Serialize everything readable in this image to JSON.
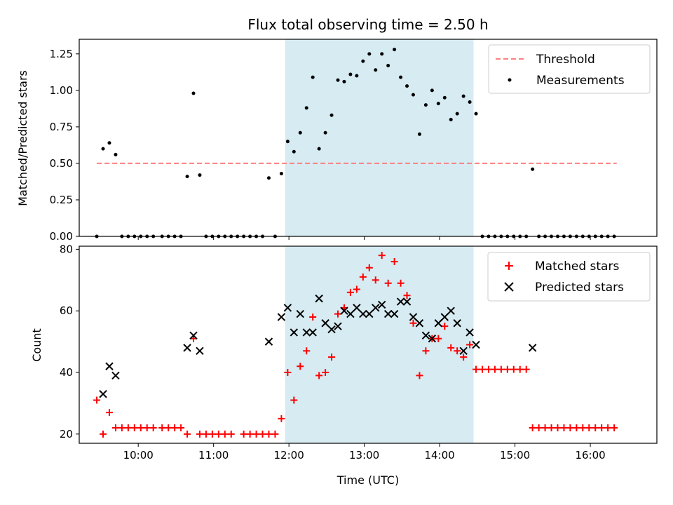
{
  "chart_data": [
    {
      "type": "scatter",
      "title": "Flux total observing time = 2.50 h",
      "xlabel": "",
      "ylabel": "Matched/Predicted stars",
      "xlim": [
        "09:13",
        "16:53"
      ],
      "ylim": [
        0,
        1.35
      ],
      "x_ticks": [
        "10:00",
        "11:00",
        "12:00",
        "13:00",
        "14:00",
        "15:00",
        "16:00"
      ],
      "y_ticks": [
        "0.00",
        "0.25",
        "0.50",
        "0.75",
        "1.00",
        "1.25"
      ],
      "shaded_region": {
        "start": "11:57",
        "end": "14:27",
        "color": "#add8e6"
      },
      "legend": {
        "placement": "upper right",
        "entries": [
          "Threshold",
          "Measurements"
        ]
      },
      "series": [
        {
          "name": "Threshold",
          "kind": "dashed-line",
          "color": "#ff7f7f",
          "x": [
            "09:27",
            "16:21"
          ],
          "y": [
            0.5,
            0.5
          ]
        },
        {
          "name": "Measurements",
          "kind": "points",
          "color": "#000000",
          "points": [
            [
              "09:27",
              0.0
            ],
            [
              "09:32",
              0.6
            ],
            [
              "09:37",
              0.64
            ],
            [
              "09:42",
              0.56
            ],
            [
              "09:47",
              0.0
            ],
            [
              "09:52",
              0.0
            ],
            [
              "09:57",
              0.0
            ],
            [
              "10:02",
              0.0
            ],
            [
              "10:07",
              0.0
            ],
            [
              "10:12",
              0.0
            ],
            [
              "10:19",
              0.0
            ],
            [
              "10:24",
              0.0
            ],
            [
              "10:29",
              0.0
            ],
            [
              "10:34",
              0.0
            ],
            [
              "10:39",
              0.41
            ],
            [
              "10:44",
              0.98
            ],
            [
              "10:49",
              0.42
            ],
            [
              "10:54",
              0.0
            ],
            [
              "10:59",
              0.0
            ],
            [
              "11:04",
              0.0
            ],
            [
              "11:09",
              0.0
            ],
            [
              "11:14",
              0.0
            ],
            [
              "11:19",
              0.0
            ],
            [
              "11:24",
              0.0
            ],
            [
              "11:29",
              0.0
            ],
            [
              "11:34",
              0.0
            ],
            [
              "11:39",
              0.0
            ],
            [
              "11:44",
              0.4
            ],
            [
              "11:49",
              0.0
            ],
            [
              "11:54",
              0.43
            ],
            [
              "11:59",
              0.65
            ],
            [
              "12:04",
              0.58
            ],
            [
              "12:09",
              0.71
            ],
            [
              "12:14",
              0.88
            ],
            [
              "12:19",
              1.09
            ],
            [
              "12:24",
              0.6
            ],
            [
              "12:29",
              0.71
            ],
            [
              "12:34",
              0.83
            ],
            [
              "12:39",
              1.07
            ],
            [
              "12:44",
              1.06
            ],
            [
              "12:49",
              1.11
            ],
            [
              "12:54",
              1.1
            ],
            [
              "12:59",
              1.2
            ],
            [
              "13:04",
              1.25
            ],
            [
              "13:09",
              1.14
            ],
            [
              "13:14",
              1.25
            ],
            [
              "13:19",
              1.17
            ],
            [
              "13:24",
              1.28
            ],
            [
              "13:29",
              1.09
            ],
            [
              "13:34",
              1.03
            ],
            [
              "13:39",
              0.97
            ],
            [
              "13:44",
              0.7
            ],
            [
              "13:49",
              0.9
            ],
            [
              "13:54",
              1.0
            ],
            [
              "13:59",
              0.91
            ],
            [
              "14:04",
              0.95
            ],
            [
              "14:09",
              0.8
            ],
            [
              "14:14",
              0.84
            ],
            [
              "14:19",
              0.96
            ],
            [
              "14:24",
              0.92
            ],
            [
              "14:29",
              0.84
            ],
            [
              "14:34",
              0.0
            ],
            [
              "14:39",
              0.0
            ],
            [
              "14:44",
              0.0
            ],
            [
              "14:49",
              0.0
            ],
            [
              "14:54",
              0.0
            ],
            [
              "14:59",
              0.0
            ],
            [
              "15:04",
              0.0
            ],
            [
              "15:09",
              0.0
            ],
            [
              "15:14",
              0.46
            ],
            [
              "15:19",
              0.0
            ],
            [
              "15:24",
              0.0
            ],
            [
              "15:29",
              0.0
            ],
            [
              "15:34",
              0.0
            ],
            [
              "15:39",
              0.0
            ],
            [
              "15:44",
              0.0
            ],
            [
              "15:49",
              0.0
            ],
            [
              "15:54",
              0.0
            ],
            [
              "15:59",
              0.0
            ],
            [
              "16:04",
              0.0
            ],
            [
              "16:09",
              0.0
            ],
            [
              "16:14",
              0.0
            ],
            [
              "16:19",
              0.0
            ]
          ]
        }
      ]
    },
    {
      "type": "scatter",
      "title": "",
      "xlabel": "Time (UTC)",
      "ylabel": "Count",
      "xlim": [
        "09:13",
        "16:53"
      ],
      "ylim": [
        17,
        81
      ],
      "x_ticks": [
        "10:00",
        "11:00",
        "12:00",
        "13:00",
        "14:00",
        "15:00",
        "16:00"
      ],
      "y_ticks": [
        "20",
        "40",
        "60",
        "80"
      ],
      "shaded_region": {
        "start": "11:57",
        "end": "14:27",
        "color": "#add8e6"
      },
      "legend": {
        "placement": "upper right",
        "entries": [
          "Matched stars",
          "Predicted stars"
        ]
      },
      "series": [
        {
          "name": "Matched stars",
          "marker": "+",
          "color": "#ff0000",
          "points": [
            [
              "09:27",
              31
            ],
            [
              "09:32",
              20
            ],
            [
              "09:37",
              27
            ],
            [
              "09:42",
              22
            ],
            [
              "09:47",
              22
            ],
            [
              "09:52",
              22
            ],
            [
              "09:57",
              22
            ],
            [
              "10:02",
              22
            ],
            [
              "10:07",
              22
            ],
            [
              "10:12",
              22
            ],
            [
              "10:19",
              22
            ],
            [
              "10:24",
              22
            ],
            [
              "10:29",
              22
            ],
            [
              "10:34",
              22
            ],
            [
              "10:39",
              20
            ],
            [
              "10:44",
              51
            ],
            [
              "10:49",
              20
            ],
            [
              "10:54",
              20
            ],
            [
              "10:59",
              20
            ],
            [
              "11:04",
              20
            ],
            [
              "11:09",
              20
            ],
            [
              "11:14",
              20
            ],
            [
              "11:24",
              20
            ],
            [
              "11:29",
              20
            ],
            [
              "11:34",
              20
            ],
            [
              "11:39",
              20
            ],
            [
              "11:44",
              20
            ],
            [
              "11:49",
              20
            ],
            [
              "11:54",
              25
            ],
            [
              "11:59",
              40
            ],
            [
              "12:04",
              31
            ],
            [
              "12:09",
              42
            ],
            [
              "12:14",
              47
            ],
            [
              "12:19",
              58
            ],
            [
              "12:24",
              39
            ],
            [
              "12:29",
              40
            ],
            [
              "12:34",
              45
            ],
            [
              "12:39",
              59
            ],
            [
              "12:44",
              61
            ],
            [
              "12:49",
              66
            ],
            [
              "12:54",
              67
            ],
            [
              "12:59",
              71
            ],
            [
              "13:04",
              74
            ],
            [
              "13:09",
              70
            ],
            [
              "13:14",
              78
            ],
            [
              "13:19",
              69
            ],
            [
              "13:24",
              76
            ],
            [
              "13:29",
              69
            ],
            [
              "13:34",
              65
            ],
            [
              "13:39",
              56
            ],
            [
              "13:44",
              39
            ],
            [
              "13:49",
              47
            ],
            [
              "13:54",
              51
            ],
            [
              "13:59",
              51
            ],
            [
              "14:04",
              55
            ],
            [
              "14:09",
              48
            ],
            [
              "14:14",
              47
            ],
            [
              "14:19",
              45
            ],
            [
              "14:24",
              49
            ],
            [
              "14:29",
              41
            ],
            [
              "14:34",
              41
            ],
            [
              "14:39",
              41
            ],
            [
              "14:44",
              41
            ],
            [
              "14:49",
              41
            ],
            [
              "14:54",
              41
            ],
            [
              "14:59",
              41
            ],
            [
              "15:04",
              41
            ],
            [
              "15:09",
              41
            ],
            [
              "15:14",
              22
            ],
            [
              "15:19",
              22
            ],
            [
              "15:24",
              22
            ],
            [
              "15:29",
              22
            ],
            [
              "15:34",
              22
            ],
            [
              "15:39",
              22
            ],
            [
              "15:44",
              22
            ],
            [
              "15:49",
              22
            ],
            [
              "15:54",
              22
            ],
            [
              "15:59",
              22
            ],
            [
              "16:04",
              22
            ],
            [
              "16:09",
              22
            ],
            [
              "16:14",
              22
            ],
            [
              "16:19",
              22
            ]
          ]
        },
        {
          "name": "Predicted stars",
          "marker": "x",
          "color": "#000000",
          "points": [
            [
              "09:32",
              33
            ],
            [
              "09:37",
              42
            ],
            [
              "09:42",
              39
            ],
            [
              "10:39",
              48
            ],
            [
              "10:44",
              52
            ],
            [
              "10:49",
              47
            ],
            [
              "11:44",
              50
            ],
            [
              "11:54",
              58
            ],
            [
              "11:59",
              61
            ],
            [
              "12:04",
              53
            ],
            [
              "12:09",
              59
            ],
            [
              "12:14",
              53
            ],
            [
              "12:19",
              53
            ],
            [
              "12:24",
              64
            ],
            [
              "12:29",
              56
            ],
            [
              "12:34",
              54
            ],
            [
              "12:39",
              55
            ],
            [
              "12:44",
              60
            ],
            [
              "12:49",
              59
            ],
            [
              "12:54",
              61
            ],
            [
              "12:59",
              59
            ],
            [
              "13:04",
              59
            ],
            [
              "13:09",
              61
            ],
            [
              "13:14",
              62
            ],
            [
              "13:19",
              59
            ],
            [
              "13:24",
              59
            ],
            [
              "13:29",
              63
            ],
            [
              "13:34",
              63
            ],
            [
              "13:39",
              58
            ],
            [
              "13:44",
              56
            ],
            [
              "13:49",
              52
            ],
            [
              "13:54",
              51
            ],
            [
              "13:59",
              56
            ],
            [
              "14:04",
              58
            ],
            [
              "14:09",
              60
            ],
            [
              "14:14",
              56
            ],
            [
              "14:19",
              47
            ],
            [
              "14:24",
              53
            ],
            [
              "14:29",
              49
            ],
            [
              "15:14",
              48
            ]
          ]
        }
      ]
    }
  ]
}
